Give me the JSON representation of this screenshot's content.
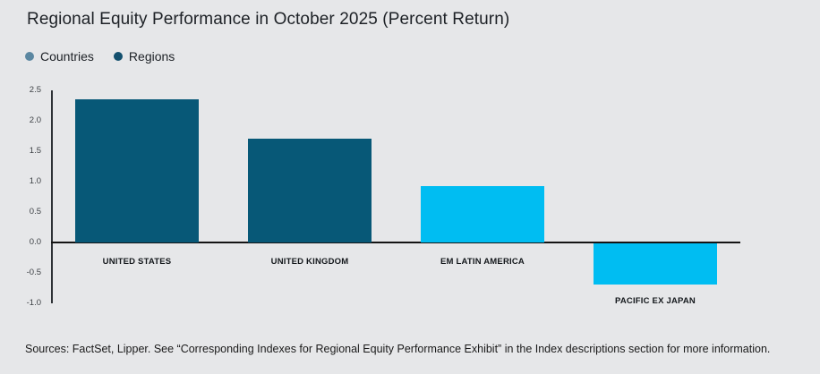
{
  "title": "Regional Equity Performance in October 2025 (Percent Return)",
  "legend": {
    "items": [
      {
        "label": "Countries",
        "color": "#5b87a1"
      },
      {
        "label": "Regions",
        "color": "#13506e"
      }
    ]
  },
  "chart_data": {
    "type": "bar",
    "title": "Regional Equity Performance in October 2025 (Percent Return)",
    "categories": [
      "UNITED STATES",
      "UNITED KINGDOM",
      "EM LATIN AMERICA",
      "PACIFIC EX JAPAN"
    ],
    "values": [
      2.35,
      1.7,
      0.93,
      -0.68
    ],
    "bar_colors": [
      "#075877",
      "#075877",
      "#00bdf2",
      "#00bdf2"
    ],
    "series_by_bar": [
      "Countries",
      "Countries",
      "Regions",
      "Regions"
    ],
    "xlabel": "",
    "ylabel": "",
    "ylim": [
      -1.0,
      2.5
    ],
    "ytick_step": 0.5,
    "ytick_labels": [
      "2.5",
      "2.0",
      "1.5",
      "1.0",
      "0.5",
      "0.0",
      "-0.5",
      "-1.0"
    ],
    "grid": false,
    "legend_position": "top-left",
    "legend_entries": [
      "Countries",
      "Regions"
    ]
  },
  "footer": {
    "source_text": "Sources: FactSet, Lipper. See “Corresponding Indexes for Regional Equity Performance Exhibit” in the Index descriptions section for more information."
  },
  "colors": {
    "background": "#e6e7e9",
    "bar_dark": "#075877",
    "bar_cyan": "#00bdf2",
    "countries_dot": "#5b87a1",
    "regions_dot": "#13506e",
    "axis": "#141414"
  }
}
